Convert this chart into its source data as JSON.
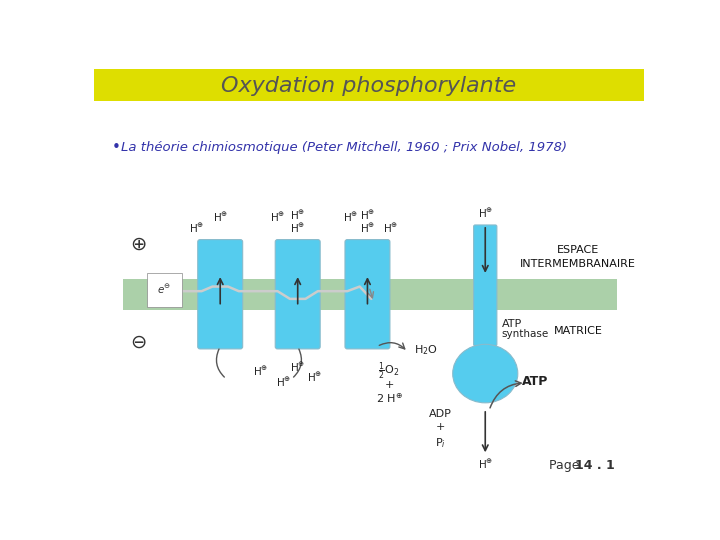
{
  "title": "Oxydation phosphorylante",
  "title_bg": "#DEDE00",
  "title_color": "#555555",
  "bullet_text": "La théorie chimiosmotique (Peter Mitchell, 1960 ; Prix Nobel, 1978)",
  "bullet_color": "#3333AA",
  "bg_color": "#FFFFFF",
  "membrane_color": "#8BBF88",
  "protein_color": "#55CCEE",
  "espace_label": "ESPACE\nINTERMEMBRANAIRE",
  "matrice_label": "MATRICE",
  "page_label": "Page ",
  "page_bold": "14 . 1",
  "fig_w": 7.2,
  "fig_h": 5.4,
  "dpi": 100
}
